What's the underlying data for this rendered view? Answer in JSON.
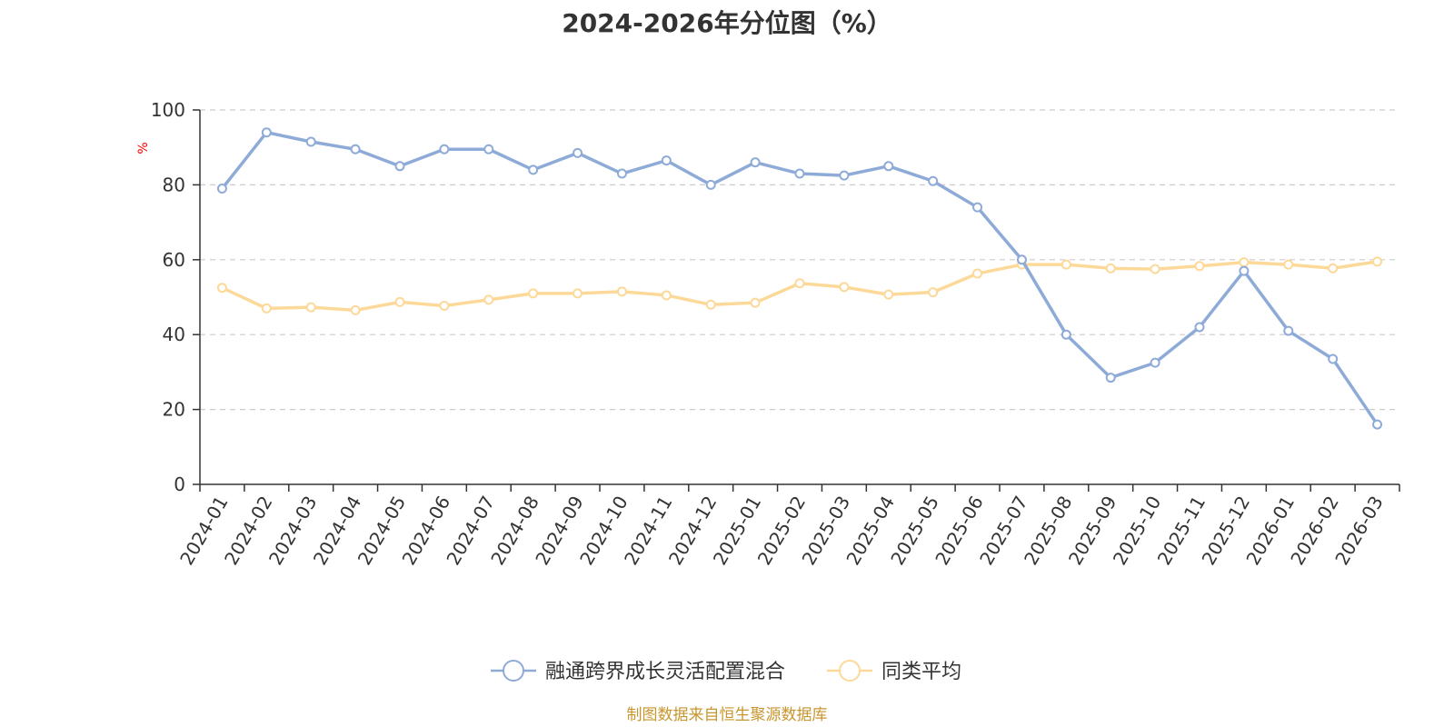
{
  "chart_data": {
    "type": "line",
    "title": "2024-2026年分位图（%）",
    "xlabel": "",
    "ylabel": "%",
    "ylim": [
      0,
      100
    ],
    "yticks": [
      0,
      20,
      40,
      60,
      80,
      100
    ],
    "grid": "horizontal-dashed",
    "legend_position": "bottom",
    "categories": [
      "2024-01",
      "2024-02",
      "2024-03",
      "2024-04",
      "2024-05",
      "2024-06",
      "2024-07",
      "2024-08",
      "2024-09",
      "2024-10",
      "2024-11",
      "2024-12",
      "2025-01",
      "2025-02",
      "2025-03",
      "2025-04",
      "2025-05",
      "2025-06",
      "2025-07",
      "2025-08",
      "2025-09",
      "2025-10",
      "2025-11",
      "2025-12",
      "2026-01",
      "2026-02",
      "2026-03"
    ],
    "series": [
      {
        "name": "融通跨界成长灵活配置混合",
        "color": "#8eabd8",
        "values": [
          79,
          94,
          91.5,
          89.5,
          85,
          89.5,
          89.5,
          84,
          88.5,
          83,
          86.5,
          80,
          86,
          83,
          82.5,
          85,
          81,
          74,
          60,
          40,
          28.5,
          32.5,
          42,
          57,
          41,
          33.5,
          16
        ]
      },
      {
        "name": "同类平均",
        "color": "#fcd999",
        "values": [
          52.5,
          47,
          47.3,
          46.5,
          48.7,
          47.7,
          49.3,
          51,
          51,
          51.5,
          50.5,
          48,
          48.5,
          53.7,
          52.7,
          50.7,
          51.3,
          56.3,
          58.7,
          58.7,
          57.7,
          57.5,
          58.3,
          59.3,
          58.7,
          57.7,
          59.5
        ]
      }
    ]
  },
  "footer": {
    "source": "制图数据来自恒生聚源数据库",
    "source_color": "#c8962e"
  }
}
